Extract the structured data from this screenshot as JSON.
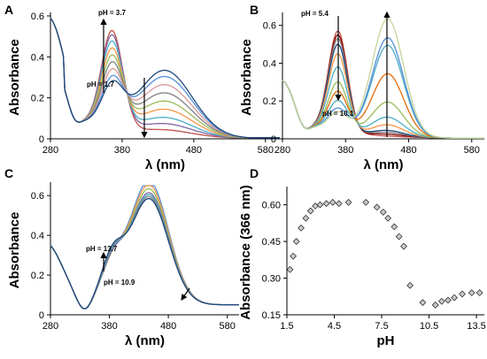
{
  "chart_data": [
    {
      "type": "line",
      "panel_label": "A",
      "xlabel": "λ (nm)",
      "ylabel": "Absorbance",
      "xlim": [
        280,
        600
      ],
      "ylim": [
        0,
        0.6
      ],
      "xticks": [
        280,
        380,
        480,
        580
      ],
      "yticks": [
        0,
        0.2,
        0.4,
        0.6
      ],
      "xtick_labels": [
        "280",
        "380",
        "480",
        "580"
      ],
      "ytick_labels": [
        "0",
        "0.2",
        "0.4",
        "0.6"
      ],
      "annotations": [
        "pH = 3.7",
        "pH = 1.7"
      ],
      "curve_params": [
        {
          "peak": 0.6,
          "band2": 0.03
        },
        {
          "peak": 0.575,
          "band2": 0.06
        },
        {
          "peak": 0.54,
          "band2": 0.09
        },
        {
          "peak": 0.5,
          "band2": 0.13
        },
        {
          "peak": 0.46,
          "band2": 0.17
        },
        {
          "peak": 0.42,
          "band2": 0.21
        },
        {
          "peak": 0.38,
          "band2": 0.25
        },
        {
          "peak": 0.34,
          "band2": 0.29
        },
        {
          "peak": 0.31,
          "band2": 0.32
        }
      ],
      "colors": [
        "#C0504D",
        "#8064A2",
        "#4BACC6",
        "#F79646",
        "#9BBB59",
        "#7F7F7F",
        "#D99694",
        "#558ED5",
        "#1F497D"
      ]
    },
    {
      "type": "line",
      "panel_label": "B",
      "xlabel": "λ (nm)",
      "ylabel": "Absorbance",
      "xlim": [
        280,
        600
      ],
      "ylim": [
        0,
        0.65
      ],
      "xticks": [
        280,
        380,
        480,
        580
      ],
      "yticks": [
        0,
        0.2,
        0.4,
        0.6
      ],
      "xtick_labels": [
        "280",
        "380",
        "480",
        "580"
      ],
      "ytick_labels": [
        "0",
        "0.2",
        "0.4",
        "0.6"
      ],
      "annotations": [
        "pH = 5.4",
        "pH = 10.1"
      ],
      "curve_params": [
        {
          "peak": 0.62,
          "band2": 0.0
        },
        {
          "peak": 0.6,
          "band2": 0.01
        },
        {
          "peak": 0.58,
          "band2": 0.02
        },
        {
          "peak": 0.55,
          "band2": 0.03
        },
        {
          "peak": 0.5,
          "band2": 0.06
        },
        {
          "peak": 0.43,
          "band2": 0.1
        },
        {
          "peak": 0.35,
          "band2": 0.18
        },
        {
          "peak": 0.3,
          "band2": 0.33
        },
        {
          "peak": 0.25,
          "band2": 0.48
        },
        {
          "peak": 0.21,
          "band2": 0.52
        },
        {
          "peak": 0.19,
          "band2": 0.62
        }
      ],
      "colors": [
        "#C0504D",
        "#8B0000",
        "#7F7F7F",
        "#1F497D",
        "#F79646",
        "#4BACC6",
        "#9BBB59",
        "#E46C0A",
        "#4BACC6",
        "#558ED5",
        "#C3D69B"
      ]
    },
    {
      "type": "line",
      "panel_label": "C",
      "xlabel": "λ (nm)",
      "ylabel": "Absorbance",
      "xlim": [
        280,
        600
      ],
      "ylim": [
        0,
        0.65
      ],
      "xticks": [
        280,
        380,
        480,
        580
      ],
      "yticks": [
        0,
        0.2,
        0.4,
        0.6
      ],
      "xtick_labels": [
        "280",
        "380",
        "480",
        "580"
      ],
      "ytick_labels": [
        "0",
        "0.2",
        "0.4",
        "0.6"
      ],
      "annotations": [
        "pH = 13.7",
        "pH = 10.9"
      ],
      "curve_params": [
        {
          "peak": 0.64,
          "dip": 0.2
        },
        {
          "peak": 0.62,
          "dip": 0.205
        },
        {
          "peak": 0.6,
          "dip": 0.21
        },
        {
          "peak": 0.58,
          "dip": 0.215
        },
        {
          "peak": 0.57,
          "dip": 0.225
        },
        {
          "peak": 0.56,
          "dip": 0.235
        },
        {
          "peak": 0.55,
          "dip": 0.245
        }
      ],
      "colors": [
        "#558ED5",
        "#F79646",
        "#9BBB59",
        "#8064A2",
        "#4BACC6",
        "#7F7F7F",
        "#1F497D"
      ]
    },
    {
      "type": "scatter",
      "panel_label": "D",
      "xlabel": "pH",
      "ylabel": "Absorbance (366 nm)",
      "xlim": [
        1.5,
        14
      ],
      "ylim": [
        0.15,
        0.66
      ],
      "xticks": [
        1.5,
        4.5,
        7.5,
        10.5,
        13.5
      ],
      "yticks": [
        0.15,
        0.3,
        0.45,
        0.6
      ],
      "xtick_labels": [
        "1.5",
        "4.5",
        "7.5",
        "10.5",
        "13.5"
      ],
      "ytick_labels": [
        "0.15",
        "0.30",
        "0.45",
        "0.60"
      ],
      "x": [
        1.7,
        1.9,
        2.1,
        2.4,
        2.7,
        3.0,
        3.3,
        3.6,
        4.0,
        4.4,
        4.8,
        5.4,
        6.5,
        7.2,
        7.6,
        7.9,
        8.3,
        8.6,
        8.9,
        9.3,
        10.1,
        10.9,
        11.3,
        11.7,
        12.1,
        12.6,
        13.2,
        13.7
      ],
      "y": [
        0.335,
        0.39,
        0.45,
        0.505,
        0.545,
        0.575,
        0.595,
        0.6,
        0.605,
        0.61,
        0.605,
        0.61,
        0.61,
        0.59,
        0.57,
        0.545,
        0.51,
        0.47,
        0.43,
        0.27,
        0.2,
        0.19,
        0.205,
        0.21,
        0.22,
        0.235,
        0.24,
        0.24
      ],
      "marker_color": "#C8C8C8"
    }
  ]
}
